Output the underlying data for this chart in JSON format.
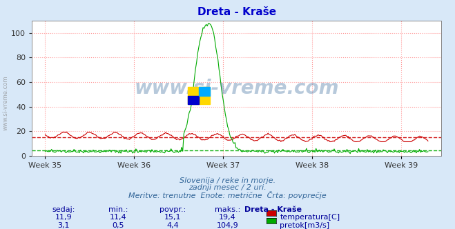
{
  "title": "Dreta - Kraše",
  "title_color": "#0000cc",
  "bg_color": "#d8e8f8",
  "plot_bg_color": "#ffffff",
  "grid_color": "#ff9999",
  "grid_style": "dotted",
  "xlabel": "",
  "ylabel": "",
  "xlim_weeks": [
    35,
    39.5
  ],
  "ylim": [
    0,
    110
  ],
  "yticks": [
    0,
    20,
    40,
    60,
    80,
    100
  ],
  "week_ticks": [
    35,
    36,
    37,
    38,
    39
  ],
  "week_labels": [
    "Week 35",
    "Week 36",
    "Week 37",
    "Week 38",
    "Week 39"
  ],
  "temp_avg": 15.1,
  "temp_min": 11.4,
  "temp_max": 19.4,
  "temp_current": 11.9,
  "flow_avg": 4.4,
  "flow_min": 0.5,
  "flow_max": 104.9,
  "flow_current": 3.1,
  "temp_color": "#cc0000",
  "flow_color": "#00aa00",
  "avg_temp_color": "#cc0000",
  "avg_flow_color": "#00aa00",
  "watermark_text": "www.si-vreme.com",
  "watermark_color": "#336699",
  "watermark_alpha": 0.35,
  "subtitle1": "Slovenija / reke in morje.",
  "subtitle2": "zadnji mesec / 2 uri.",
  "subtitle3": "Meritve: trenutne  Enote: metrične  Črta: povprečje",
  "subtitle_color": "#336699",
  "table_header": [
    "sedaj:",
    "min.:",
    "povpr.:",
    "maks.:",
    "Dreta - Kraše"
  ],
  "table_color": "#000099",
  "left_label": "www.si-vreme.com",
  "num_points": 360
}
